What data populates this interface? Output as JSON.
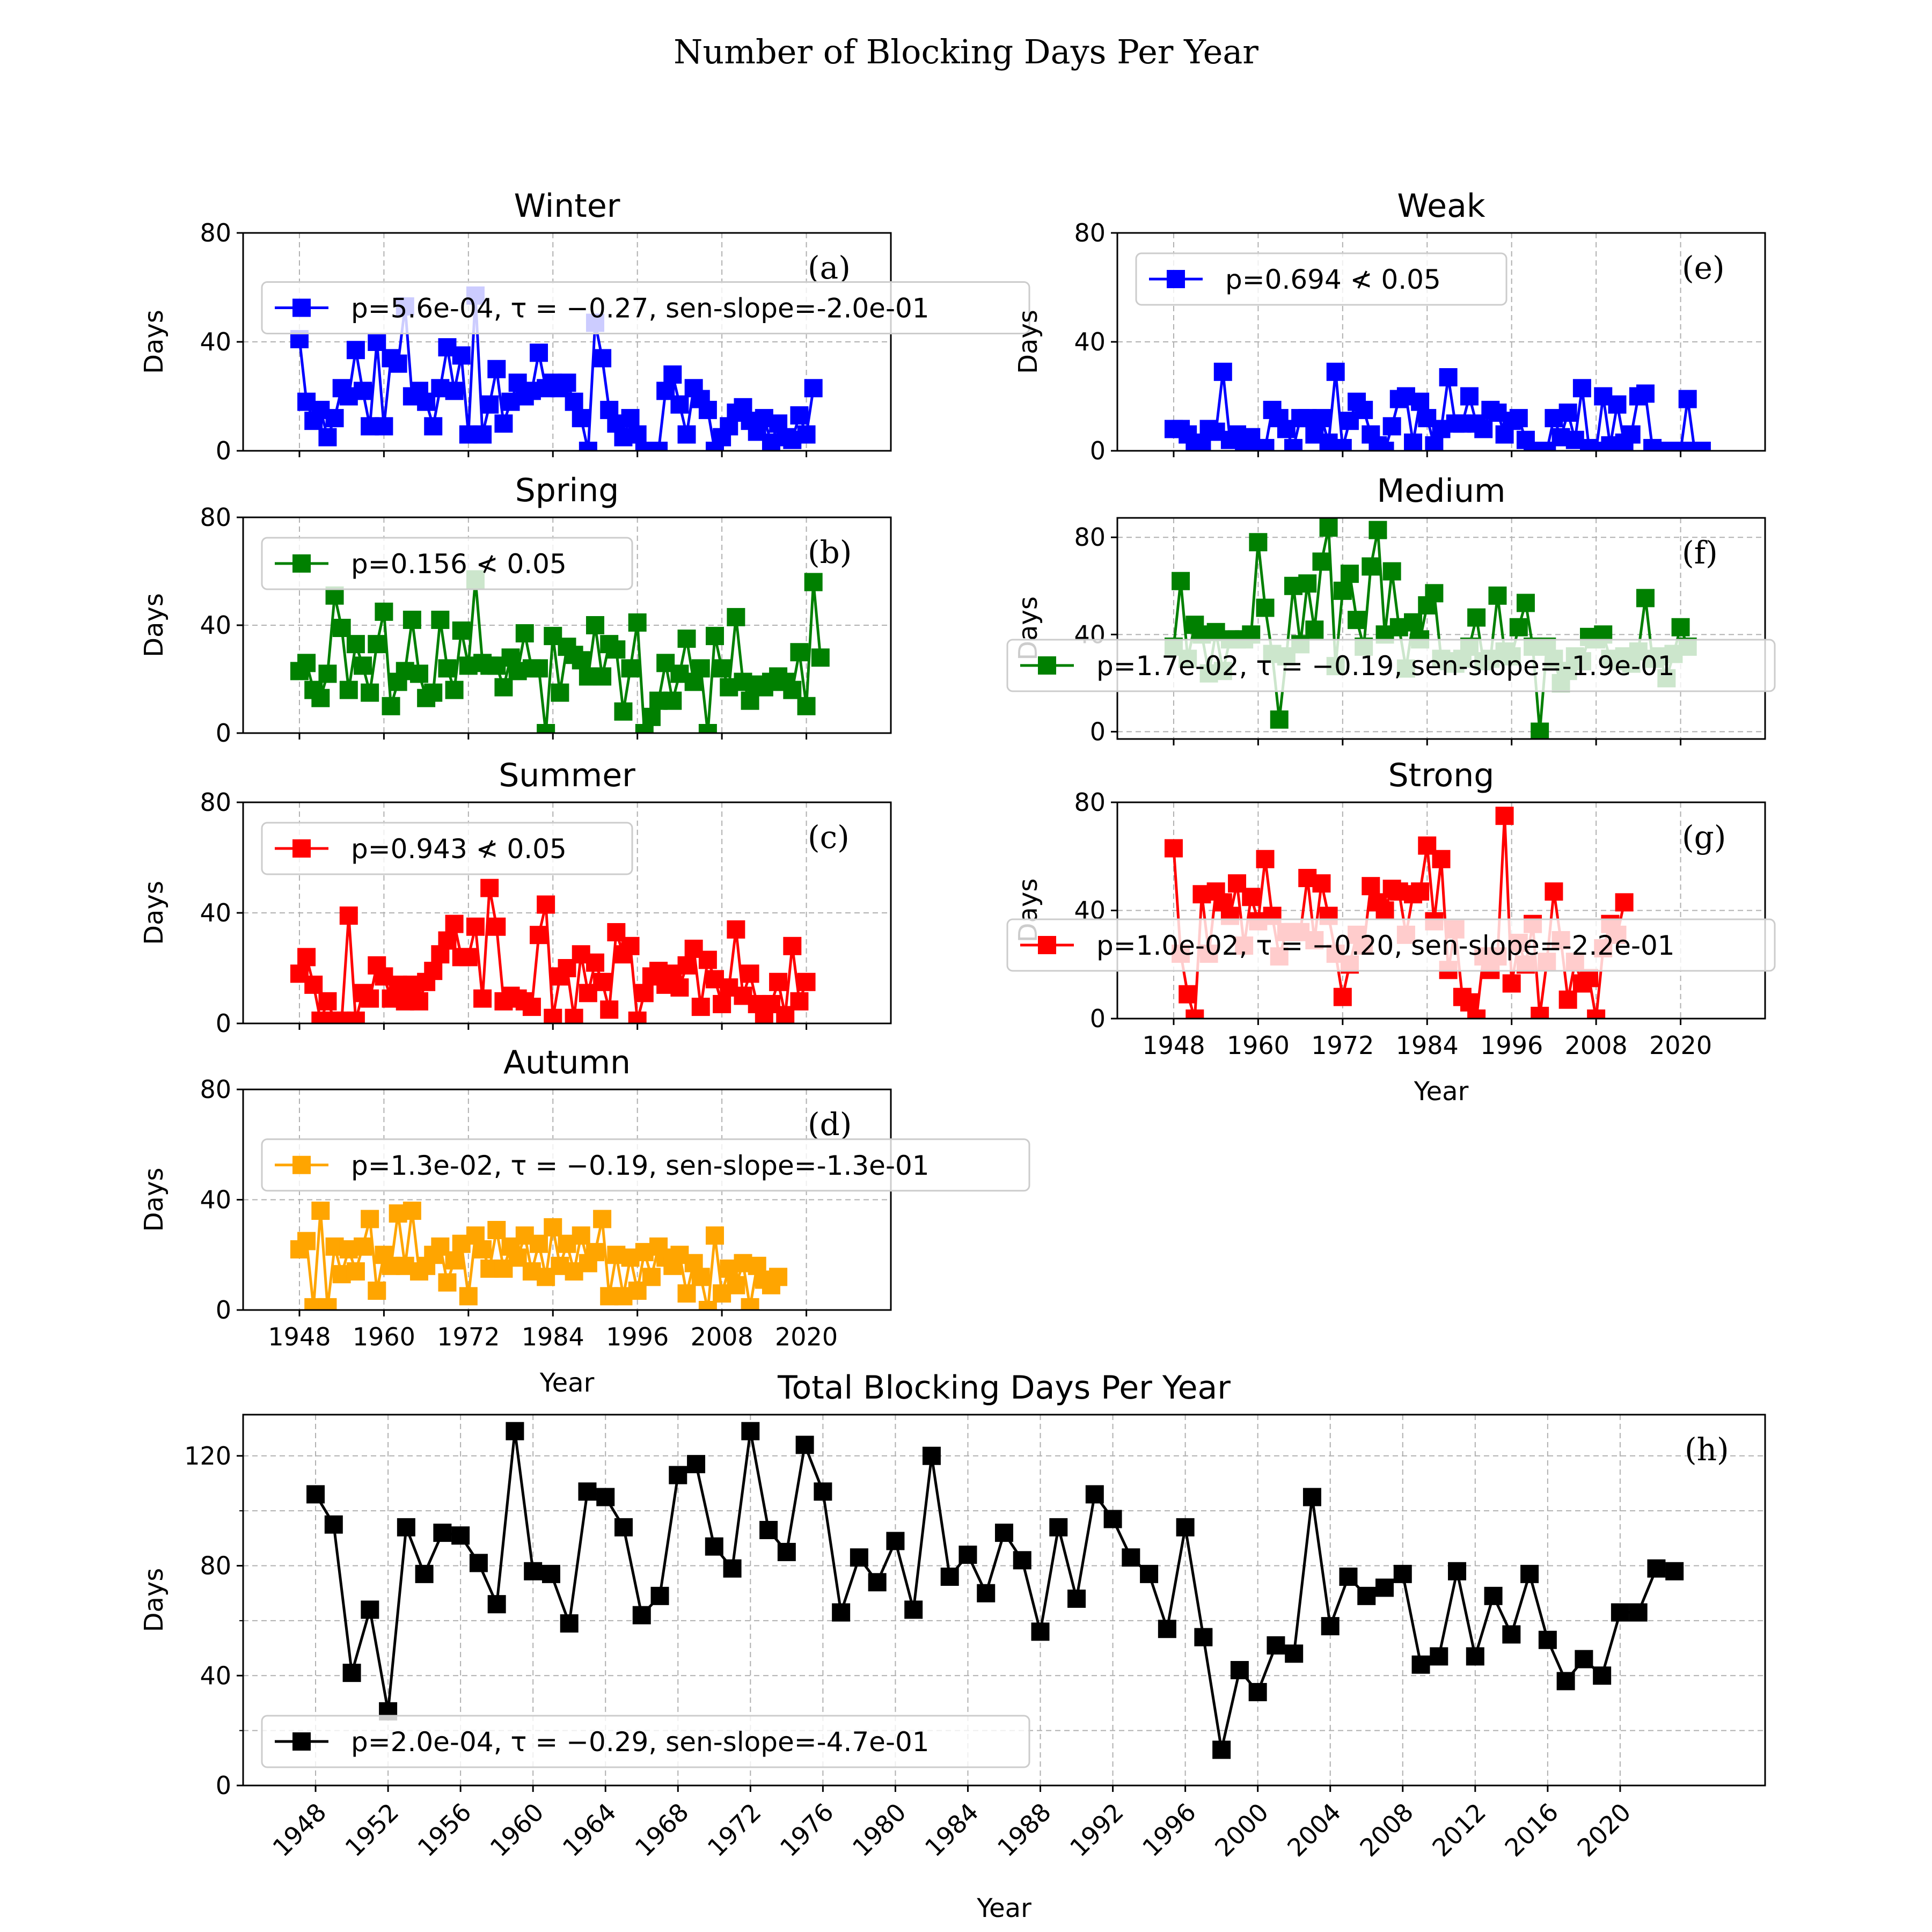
{
  "title": "Number of Blocking Days Per Year",
  "chart_data": [
    {
      "type": "line",
      "panel": "a",
      "title": "Winter",
      "letter": "(a)",
      "color": "#0000ff",
      "xlabel": "",
      "ylabel": "Days",
      "ylim": [
        0,
        80
      ],
      "yticks": [
        0,
        40,
        80
      ],
      "xticks": [
        1948,
        1960,
        1972,
        1984,
        1996,
        2008,
        2020
      ],
      "xtick_labels_shown": false,
      "legend": "p=5.6e-04, τ = −0.27, sen-slope=-2.0e-01",
      "legend_loc": "center",
      "x_start": 1948,
      "values": [
        41,
        18,
        11,
        15,
        5,
        12,
        23,
        20,
        37,
        22,
        9,
        40,
        9,
        34,
        32,
        53,
        20,
        22,
        18,
        9,
        23,
        38,
        22,
        35,
        6,
        57,
        6,
        17,
        30,
        10,
        18,
        25,
        20,
        22,
        36,
        23,
        25,
        23,
        25,
        18,
        12,
        0,
        47,
        34,
        15,
        10,
        5,
        12,
        6,
        0,
        0,
        0,
        22,
        28,
        17,
        6,
        23,
        19,
        15,
        0,
        5,
        9,
        14,
        16,
        11,
        7,
        12,
        3,
        10,
        5,
        4,
        13,
        6,
        23
      ]
    },
    {
      "type": "line",
      "panel": "b",
      "title": "Spring",
      "letter": "(b)",
      "color": "#008000",
      "xlabel": "",
      "ylabel": "Days",
      "ylim": [
        0,
        80
      ],
      "yticks": [
        0,
        40,
        80
      ],
      "xticks": [
        1948,
        1960,
        1972,
        1984,
        1996,
        2008,
        2020
      ],
      "xtick_labels_shown": false,
      "legend": "p=0.156 ≮ 0.05",
      "legend_loc": "upper left",
      "x_start": 1948,
      "values": [
        23,
        26,
        16,
        13,
        22,
        51,
        39,
        16,
        33,
        25,
        15,
        33,
        45,
        10,
        19,
        23,
        42,
        22,
        13,
        15,
        42,
        24,
        16,
        38,
        25,
        57,
        26,
        25,
        25,
        17,
        28,
        23,
        37,
        24,
        24,
        0,
        36,
        15,
        32,
        29,
        27,
        21,
        40,
        21,
        33,
        31,
        8,
        24,
        41,
        0,
        6,
        12,
        26,
        12,
        22,
        35,
        19,
        24,
        0,
        36,
        24,
        17,
        43,
        19,
        12,
        18,
        17,
        19,
        21,
        19,
        16,
        30,
        10,
        56,
        28
      ]
    },
    {
      "type": "line",
      "panel": "c",
      "title": "Summer",
      "letter": "(c)",
      "color": "#ff0000",
      "xlabel": "",
      "ylabel": "Days",
      "ylim": [
        0,
        80
      ],
      "yticks": [
        0,
        40,
        80
      ],
      "xticks": [
        1948,
        1960,
        1972,
        1984,
        1996,
        2008,
        2020
      ],
      "xtick_labels_shown": false,
      "legend": "p=0.943 ≮ 0.05",
      "legend_loc": "upper left",
      "x_start": 1948,
      "values": [
        18,
        24,
        14,
        1,
        8,
        1,
        1,
        39,
        1,
        11,
        9,
        21,
        17,
        9,
        14,
        8,
        14,
        8,
        15,
        19,
        25,
        30,
        36,
        24,
        24,
        35,
        9,
        49,
        35,
        8,
        10,
        9,
        8,
        6,
        32,
        43,
        2,
        17,
        20,
        2,
        25,
        11,
        22,
        15,
        5,
        33,
        25,
        28,
        1,
        11,
        17,
        19,
        14,
        18,
        13,
        21,
        27,
        6,
        23,
        16,
        7,
        13,
        34,
        10,
        18,
        7,
        1,
        7,
        15,
        3,
        28,
        8,
        15
      ]
    },
    {
      "type": "line",
      "panel": "d",
      "title": "Autumn",
      "letter": "(d)",
      "color": "#ffa500",
      "xlabel": "Year",
      "ylabel": "Days",
      "ylim": [
        0,
        80
      ],
      "yticks": [
        0,
        40,
        80
      ],
      "xticks": [
        1948,
        1960,
        1972,
        1984,
        1996,
        2008,
        2020
      ],
      "xtick_labels_shown": true,
      "legend": "p=1.3e-02, τ = −0.19, sen-slope=-1.3e-01",
      "legend_loc": "center",
      "x_start": 1948,
      "values": [
        22,
        25,
        1,
        36,
        1,
        23,
        13,
        22,
        14,
        23,
        33,
        7,
        20,
        16,
        35,
        16,
        36,
        14,
        16,
        20,
        23,
        10,
        18,
        24,
        5,
        27,
        22,
        15,
        29,
        15,
        23,
        19,
        27,
        14,
        24,
        12,
        30,
        16,
        24,
        14,
        27,
        17,
        21,
        33,
        5,
        20,
        5,
        19,
        7,
        21,
        12,
        23,
        19,
        16,
        20,
        6,
        17,
        12,
        0,
        27,
        6,
        15,
        9,
        17,
        1,
        16,
        11,
        9,
        12
      ]
    },
    {
      "type": "line",
      "panel": "e",
      "title": "Weak",
      "letter": "(e)",
      "color": "#0000ff",
      "xlabel": "",
      "ylabel": "Days",
      "ylim": [
        0,
        80
      ],
      "yticks": [
        0,
        40,
        80
      ],
      "xticks": [
        1948,
        1960,
        1972,
        1984,
        1996,
        2008,
        2020
      ],
      "xtick_labels_shown": false,
      "legend": "p=0.694 ≮ 0.05",
      "legend_loc": "upper left",
      "x_start": 1948,
      "values": [
        8,
        8,
        6,
        2,
        3,
        8,
        7,
        29,
        4,
        6,
        2,
        5,
        1,
        1,
        15,
        12,
        8,
        1,
        12,
        12,
        6,
        12,
        3,
        29,
        1,
        11,
        18,
        15,
        6,
        2,
        0,
        9,
        19,
        20,
        3,
        18,
        12,
        2,
        8,
        27,
        10,
        10,
        20,
        10,
        8,
        15,
        14,
        6,
        11,
        12,
        4,
        0,
        0,
        0,
        12,
        5,
        14,
        4,
        23,
        1,
        0,
        20,
        2,
        17,
        3,
        6,
        20,
        21,
        1,
        0,
        0,
        0,
        0,
        19,
        0,
        0
      ]
    },
    {
      "type": "line",
      "panel": "f",
      "title": "Medium",
      "letter": "(f)",
      "color": "#008000",
      "xlabel": "",
      "ylabel": "Days",
      "ylim": [
        -3,
        88
      ],
      "yticks": [
        0,
        40,
        80
      ],
      "xticks": [
        1948,
        1960,
        1972,
        1984,
        1996,
        2008,
        2020
      ],
      "xtick_labels_shown": false,
      "legend": "p=1.7e-02, τ = −0.19, sen-slope=-1.9e-01",
      "legend_loc": "lower right",
      "x_start": 1948,
      "values": [
        35,
        62,
        30,
        44,
        40,
        24,
        41,
        25,
        38,
        38,
        38,
        40,
        78,
        51,
        32,
        5,
        31,
        60,
        36,
        61,
        42,
        70,
        84,
        27,
        58,
        65,
        46,
        35,
        68,
        83,
        40,
        66,
        43,
        26,
        45,
        38,
        52,
        57,
        30,
        29,
        28,
        30,
        35,
        47,
        29,
        30,
        56,
        33,
        31,
        43,
        53,
        35,
        0,
        35,
        30,
        20,
        25,
        31,
        29,
        39,
        38,
        40,
        30,
        29,
        31,
        28,
        33,
        55,
        30,
        31,
        22,
        32,
        43,
        35
      ]
    },
    {
      "type": "line",
      "panel": "g",
      "title": "Strong",
      "letter": "(g)",
      "color": "#ff0000",
      "xlabel": "Year",
      "ylabel": "Days",
      "ylim": [
        0,
        80
      ],
      "yticks": [
        0,
        40,
        80
      ],
      "xticks": [
        1948,
        1960,
        1972,
        1984,
        1996,
        2008,
        2020
      ],
      "xtick_labels_shown": true,
      "legend": "p=1.0e-02, τ = −0.20, sen-slope=-2.2e-01",
      "legend_loc": "lower right",
      "x_start": 1948,
      "values": [
        63,
        24,
        9,
        0,
        46,
        24,
        47,
        43,
        38,
        50,
        27,
        45,
        36,
        59,
        38,
        23,
        32,
        32,
        32,
        52,
        29,
        50,
        38,
        24,
        8,
        20,
        31,
        27,
        49,
        43,
        40,
        48,
        47,
        31,
        46,
        47,
        64,
        36,
        59,
        18,
        33,
        8,
        6,
        0,
        23,
        18,
        23,
        75,
        13,
        28,
        20,
        35,
        1,
        21,
        47,
        29,
        7,
        21,
        13,
        15,
        0,
        26,
        35,
        31,
        43
      ]
    },
    {
      "type": "line",
      "panel": "h",
      "title": "Total Blocking Days Per Year",
      "letter": "(h)",
      "color": "#000000",
      "xlabel": "Year",
      "ylabel": "Days",
      "ylim": [
        0,
        135
      ],
      "yticks": [
        0,
        40,
        80,
        120
      ],
      "xticks": [
        1948,
        1952,
        1956,
        1960,
        1964,
        1968,
        1972,
        1976,
        1980,
        1984,
        1988,
        1992,
        1996,
        2000,
        2004,
        2008,
        2012,
        2016,
        2020
      ],
      "xtick_labels_shown": true,
      "legend": "p=2.0e-04, τ = −0.29, sen-slope=-4.7e-01",
      "legend_loc": "lower left",
      "x_start": 1948,
      "values": [
        106,
        95,
        41,
        64,
        27,
        94,
        77,
        92,
        91,
        81,
        66,
        129,
        78,
        77,
        59,
        107,
        105,
        94,
        62,
        69,
        113,
        117,
        87,
        79,
        129,
        93,
        85,
        124,
        107,
        63,
        83,
        74,
        89,
        64,
        120,
        76,
        84,
        70,
        92,
        82,
        56,
        94,
        68,
        106,
        97,
        83,
        77,
        57,
        94,
        54,
        13,
        42,
        34,
        51,
        48,
        105,
        58,
        76,
        69,
        72,
        77,
        44,
        47,
        78,
        47,
        69,
        55,
        77,
        53,
        38,
        46,
        40,
        63,
        63,
        79,
        78
      ]
    }
  ]
}
